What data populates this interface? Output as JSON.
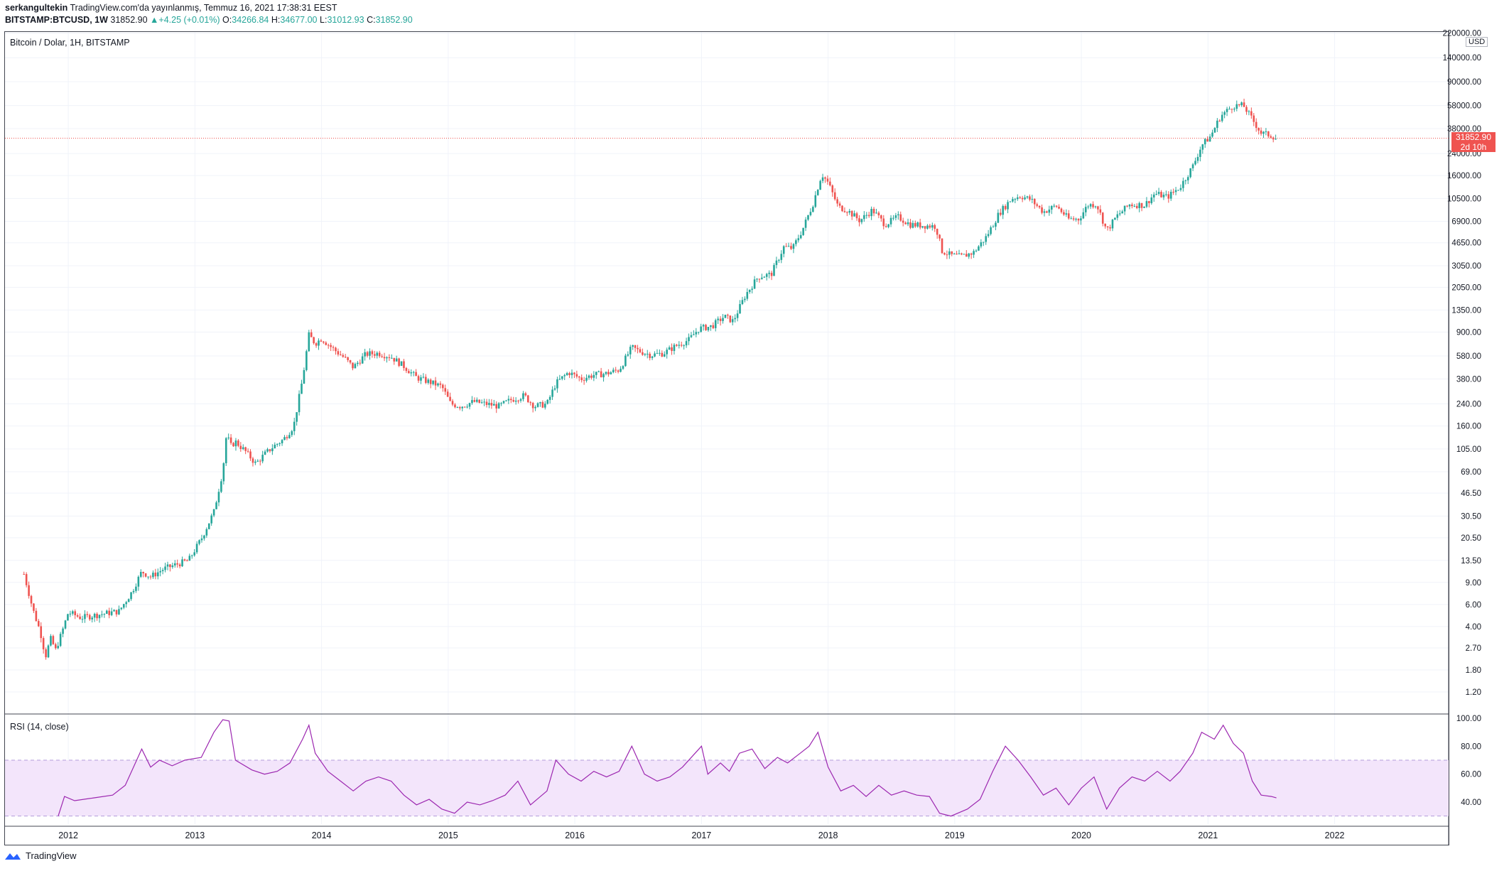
{
  "header": {
    "author": "serkangultekin",
    "published": "TradingView.com'da yayınlanmış, Temmuz 16, 2021 17:38:31 EEST",
    "symbol_line": "BITSTAMP:BTCUSD, 1W",
    "last": "31852.90",
    "change": "+4.25 (+0.01%)",
    "o_label": "O:",
    "o": "34266.84",
    "h_label": "H:",
    "h": "34677.00",
    "l_label": "L:",
    "l": "31012.93",
    "c_label": "C:",
    "c": "31852.90"
  },
  "chart_title": "Bitcoin / Dolar, 1H, BITSTAMP",
  "rsi_title": "RSI (14, close)",
  "currency_button": "USD",
  "last_price_badge": "31852.90",
  "countdown_badge": "2d 10h",
  "footer_brand": "TradingView",
  "colors": {
    "up": "#26a69a",
    "down": "#ef5350",
    "rsi": "#9c27b0",
    "rsi_band": "#f3e5fb",
    "grid": "#f0f3fa"
  },
  "chart_data": [
    {
      "type": "candlestick",
      "title": "Bitcoin / Dolar, 1H, BITSTAMP",
      "y_scale": "log",
      "y_unit": "USD",
      "y_ticks": [
        "1.20",
        "1.80",
        "2.70",
        "4.00",
        "6.00",
        "9.00",
        "13.50",
        "20.50",
        "30.50",
        "46.50",
        "69.00",
        "105.00",
        "160.00",
        "240.00",
        "380.00",
        "580.00",
        "900.00",
        "1350.00",
        "2050.00",
        "3050.00",
        "4650.00",
        "6900.00",
        "10500.00",
        "16000.00",
        "24000.00",
        "38000.00",
        "58000.00",
        "90000.00",
        "140000.00",
        "220000.00"
      ],
      "x_ticks": [
        "2012",
        "2013",
        "2014",
        "2015",
        "2016",
        "2017",
        "2018",
        "2019",
        "2020",
        "2021",
        "2022"
      ],
      "xlim": [
        2011.5,
        2022.9
      ],
      "approx_close_path": [
        [
          2011.65,
          10.5
        ],
        [
          2011.68,
          8
        ],
        [
          2011.72,
          5.5
        ],
        [
          2011.78,
          3.6
        ],
        [
          2011.82,
          2.3
        ],
        [
          2011.86,
          3.2
        ],
        [
          2011.9,
          2.6
        ],
        [
          2011.95,
          3.6
        ],
        [
          2012.0,
          5.2
        ],
        [
          2012.1,
          4.7
        ],
        [
          2012.2,
          4.9
        ],
        [
          2012.3,
          5.1
        ],
        [
          2012.4,
          5.3
        ],
        [
          2012.5,
          7.5
        ],
        [
          2012.58,
          11
        ],
        [
          2012.65,
          10
        ],
        [
          2012.75,
          11.5
        ],
        [
          2012.85,
          12.5
        ],
        [
          2012.95,
          13.5
        ],
        [
          2013.05,
          20
        ],
        [
          2013.15,
          33
        ],
        [
          2013.22,
          70
        ],
        [
          2013.25,
          140
        ],
        [
          2013.28,
          110
        ],
        [
          2013.32,
          120
        ],
        [
          2013.4,
          100
        ],
        [
          2013.48,
          80
        ],
        [
          2013.55,
          95
        ],
        [
          2013.62,
          110
        ],
        [
          2013.7,
          125
        ],
        [
          2013.78,
          160
        ],
        [
          2013.85,
          380
        ],
        [
          2013.9,
          850
        ],
        [
          2013.95,
          730
        ],
        [
          2014.0,
          800
        ],
        [
          2014.1,
          650
        ],
        [
          2014.18,
          560
        ],
        [
          2014.25,
          470
        ],
        [
          2014.35,
          600
        ],
        [
          2014.45,
          610
        ],
        [
          2014.55,
          570
        ],
        [
          2014.65,
          480
        ],
        [
          2014.75,
          390
        ],
        [
          2014.85,
          360
        ],
        [
          2014.95,
          330
        ],
        [
          2015.02,
          240
        ],
        [
          2015.1,
          230
        ],
        [
          2015.2,
          250
        ],
        [
          2015.3,
          240
        ],
        [
          2015.4,
          230
        ],
        [
          2015.5,
          260
        ],
        [
          2015.6,
          280
        ],
        [
          2015.68,
          230
        ],
        [
          2015.78,
          240
        ],
        [
          2015.85,
          350
        ],
        [
          2015.95,
          430
        ],
        [
          2016.05,
          380
        ],
        [
          2016.15,
          410
        ],
        [
          2016.25,
          420
        ],
        [
          2016.35,
          450
        ],
        [
          2016.45,
          680
        ],
        [
          2016.5,
          640
        ],
        [
          2016.6,
          590
        ],
        [
          2016.7,
          610
        ],
        [
          2016.8,
          700
        ],
        [
          2016.9,
          780
        ],
        [
          2016.98,
          960
        ],
        [
          2017.08,
          1000
        ],
        [
          2017.18,
          1200
        ],
        [
          2017.25,
          1100
        ],
        [
          2017.35,
          1800
        ],
        [
          2017.45,
          2500
        ],
        [
          2017.55,
          2600
        ],
        [
          2017.65,
          4300
        ],
        [
          2017.72,
          4200
        ],
        [
          2017.8,
          6000
        ],
        [
          2017.88,
          9500
        ],
        [
          2017.95,
          16500
        ],
        [
          2018.0,
          14000
        ],
        [
          2018.08,
          9000
        ],
        [
          2018.15,
          8500
        ],
        [
          2018.25,
          7000
        ],
        [
          2018.35,
          8500
        ],
        [
          2018.45,
          6500
        ],
        [
          2018.55,
          7500
        ],
        [
          2018.65,
          6500
        ],
        [
          2018.75,
          6400
        ],
        [
          2018.85,
          6300
        ],
        [
          2018.9,
          4000
        ],
        [
          2018.97,
          3700
        ],
        [
          2019.05,
          3600
        ],
        [
          2019.15,
          3900
        ],
        [
          2019.25,
          5200
        ],
        [
          2019.35,
          8000
        ],
        [
          2019.45,
          10500
        ],
        [
          2019.52,
          11000
        ],
        [
          2019.6,
          10300
        ],
        [
          2019.7,
          8200
        ],
        [
          2019.8,
          9200
        ],
        [
          2019.9,
          7200
        ],
        [
          2019.98,
          7200
        ],
        [
          2020.05,
          9300
        ],
        [
          2020.12,
          9500
        ],
        [
          2020.2,
          5800
        ],
        [
          2020.28,
          7600
        ],
        [
          2020.38,
          9400
        ],
        [
          2020.5,
          9300
        ],
        [
          2020.58,
          11500
        ],
        [
          2020.68,
          10800
        ],
        [
          2020.78,
          13000
        ],
        [
          2020.88,
          19000
        ],
        [
          2020.95,
          28000
        ],
        [
          2021.02,
          33000
        ],
        [
          2021.1,
          48000
        ],
        [
          2021.2,
          58000
        ],
        [
          2021.28,
          58000
        ],
        [
          2021.35,
          45000
        ],
        [
          2021.42,
          35000
        ],
        [
          2021.5,
          33500
        ],
        [
          2021.54,
          31852.9
        ]
      ]
    },
    {
      "type": "line",
      "title": "RSI (14, close)",
      "y_ticks": [
        "40.00",
        "60.00",
        "80.00",
        "100.00"
      ],
      "bands": [
        30,
        70
      ],
      "approx_values": [
        [
          2011.92,
          30
        ],
        [
          2011.97,
          44
        ],
        [
          2012.05,
          41
        ],
        [
          2012.2,
          43
        ],
        [
          2012.35,
          45
        ],
        [
          2012.45,
          52
        ],
        [
          2012.58,
          78
        ],
        [
          2012.65,
          65
        ],
        [
          2012.72,
          70
        ],
        [
          2012.82,
          66
        ],
        [
          2012.92,
          70
        ],
        [
          2013.05,
          72
        ],
        [
          2013.15,
          90
        ],
        [
          2013.22,
          99
        ],
        [
          2013.27,
          98
        ],
        [
          2013.32,
          70
        ],
        [
          2013.45,
          63
        ],
        [
          2013.55,
          60
        ],
        [
          2013.65,
          62
        ],
        [
          2013.75,
          68
        ],
        [
          2013.85,
          85
        ],
        [
          2013.9,
          95
        ],
        [
          2013.95,
          75
        ],
        [
          2014.05,
          62
        ],
        [
          2014.15,
          55
        ],
        [
          2014.25,
          48
        ],
        [
          2014.35,
          55
        ],
        [
          2014.45,
          58
        ],
        [
          2014.55,
          55
        ],
        [
          2014.65,
          45
        ],
        [
          2014.75,
          38
        ],
        [
          2014.85,
          42
        ],
        [
          2014.95,
          35
        ],
        [
          2015.05,
          32
        ],
        [
          2015.15,
          40
        ],
        [
          2015.25,
          38
        ],
        [
          2015.35,
          41
        ],
        [
          2015.45,
          45
        ],
        [
          2015.55,
          55
        ],
        [
          2015.65,
          38
        ],
        [
          2015.78,
          48
        ],
        [
          2015.85,
          70
        ],
        [
          2015.95,
          60
        ],
        [
          2016.05,
          55
        ],
        [
          2016.15,
          62
        ],
        [
          2016.25,
          58
        ],
        [
          2016.35,
          62
        ],
        [
          2016.45,
          80
        ],
        [
          2016.55,
          60
        ],
        [
          2016.65,
          55
        ],
        [
          2016.75,
          58
        ],
        [
          2016.85,
          65
        ],
        [
          2016.95,
          75
        ],
        [
          2017.0,
          80
        ],
        [
          2017.05,
          60
        ],
        [
          2017.15,
          68
        ],
        [
          2017.22,
          62
        ],
        [
          2017.3,
          75
        ],
        [
          2017.4,
          78
        ],
        [
          2017.5,
          64
        ],
        [
          2017.6,
          72
        ],
        [
          2017.68,
          68
        ],
        [
          2017.78,
          75
        ],
        [
          2017.85,
          80
        ],
        [
          2017.92,
          90
        ],
        [
          2018.0,
          65
        ],
        [
          2018.1,
          48
        ],
        [
          2018.2,
          52
        ],
        [
          2018.3,
          44
        ],
        [
          2018.4,
          52
        ],
        [
          2018.5,
          45
        ],
        [
          2018.6,
          48
        ],
        [
          2018.7,
          45
        ],
        [
          2018.8,
          44
        ],
        [
          2018.88,
          32
        ],
        [
          2018.97,
          30
        ],
        [
          2019.1,
          35
        ],
        [
          2019.2,
          42
        ],
        [
          2019.3,
          62
        ],
        [
          2019.4,
          80
        ],
        [
          2019.5,
          70
        ],
        [
          2019.6,
          58
        ],
        [
          2019.7,
          45
        ],
        [
          2019.8,
          50
        ],
        [
          2019.9,
          38
        ],
        [
          2020.0,
          50
        ],
        [
          2020.1,
          58
        ],
        [
          2020.2,
          35
        ],
        [
          2020.3,
          50
        ],
        [
          2020.4,
          58
        ],
        [
          2020.5,
          55
        ],
        [
          2020.6,
          62
        ],
        [
          2020.7,
          55
        ],
        [
          2020.78,
          62
        ],
        [
          2020.88,
          75
        ],
        [
          2020.95,
          90
        ],
        [
          2021.05,
          85
        ],
        [
          2021.12,
          95
        ],
        [
          2021.2,
          82
        ],
        [
          2021.28,
          75
        ],
        [
          2021.35,
          55
        ],
        [
          2021.42,
          45
        ],
        [
          2021.5,
          44
        ],
        [
          2021.54,
          43
        ]
      ]
    }
  ]
}
